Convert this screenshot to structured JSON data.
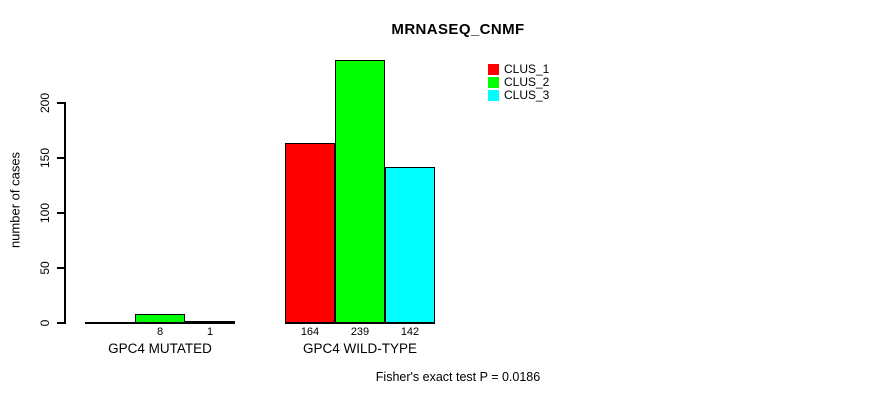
{
  "chart_data": {
    "type": "bar",
    "title": "MRNASEQ_CNMF",
    "xlabel": "",
    "ylabel": "number of cases",
    "categories": [
      "GPC4 MUTATED",
      "GPC4 WILD-TYPE"
    ],
    "series": [
      {
        "name": "CLUS_1",
        "color": "#ff0000",
        "values": [
          0,
          164
        ]
      },
      {
        "name": "CLUS_2",
        "color": "#00ff00",
        "values": [
          8,
          239
        ]
      },
      {
        "name": "CLUS_3",
        "color": "#00ffff",
        "values": [
          1,
          142
        ]
      }
    ],
    "bar_value_labels": [
      [
        "",
        "8",
        "1"
      ],
      [
        "164",
        "239",
        "142"
      ]
    ],
    "yticks": [
      0,
      50,
      100,
      150,
      200
    ],
    "ylim": [
      0,
      240
    ],
    "grid": false,
    "legend_position": "top-right",
    "legend_entries": [
      "CLUS_1",
      "CLUS_2",
      "CLUS_3"
    ],
    "annotation": "Fisher's exact test P = 0.0186",
    "bar_border_color": "#000000",
    "axis_color": "#000000"
  }
}
